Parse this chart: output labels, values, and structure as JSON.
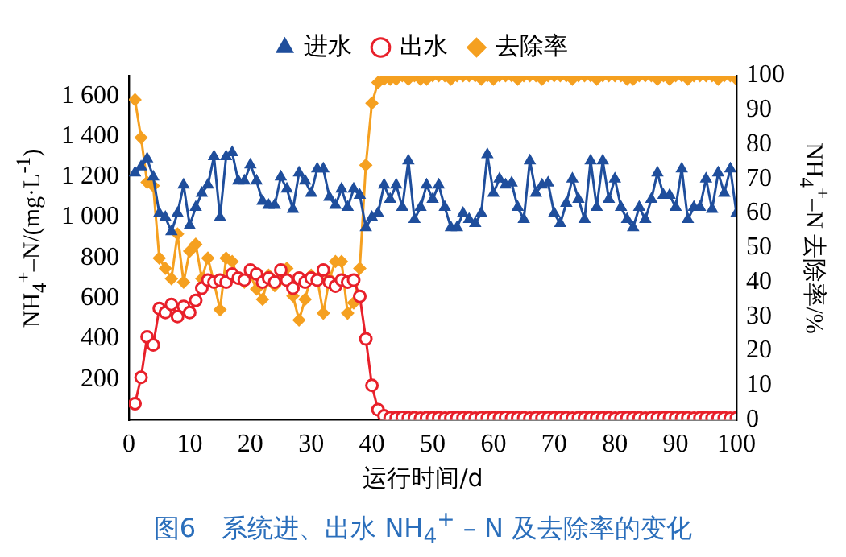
{
  "chart_data": {
    "type": "line",
    "xlabel": "运行时间/d",
    "ylabel": "NH$_{4}$$^{+}$–N/(mg·L$^{-1}$)",
    "y2label": "NH$_{4}$$^{+}$–N 去除率/%",
    "x": [
      1,
      2,
      3,
      4,
      5,
      6,
      7,
      8,
      9,
      10,
      11,
      12,
      13,
      14,
      15,
      16,
      17,
      18,
      19,
      20,
      21,
      22,
      23,
      24,
      25,
      26,
      27,
      28,
      29,
      30,
      31,
      32,
      33,
      34,
      35,
      36,
      37,
      38,
      39,
      40,
      41,
      42,
      43,
      44,
      45,
      46,
      47,
      48,
      49,
      50,
      51,
      52,
      53,
      54,
      55,
      56,
      57,
      58,
      59,
      60,
      61,
      62,
      63,
      64,
      65,
      66,
      67,
      68,
      69,
      70,
      71,
      72,
      73,
      74,
      75,
      76,
      77,
      78,
      79,
      80,
      81,
      82,
      83,
      84,
      85,
      86,
      87,
      88,
      89,
      90,
      91,
      92,
      93,
      94,
      95,
      96,
      97,
      98,
      99,
      100
    ],
    "series": [
      {
        "name": "进水",
        "color": "#1f4e9c",
        "marker": "triangle",
        "values": [
          1220,
          1250,
          1290,
          1200,
          1020,
          1000,
          930,
          1020,
          1160,
          960,
          1050,
          1120,
          1160,
          1300,
          1000,
          1300,
          1320,
          1180,
          1180,
          1260,
          1180,
          1080,
          1060,
          1060,
          1200,
          1140,
          1040,
          1220,
          1180,
          1120,
          1240,
          1240,
          1100,
          1060,
          1140,
          1050,
          1140,
          1110,
          950,
          1000,
          1020,
          1160,
          1090,
          1160,
          1050,
          1280,
          990,
          1050,
          1160,
          1090,
          1160,
          1050,
          950,
          950,
          1020,
          990,
          970,
          1020,
          1310,
          1120,
          1190,
          1160,
          1170,
          1050,
          990,
          1280,
          1120,
          1160,
          1170,
          1020,
          970,
          1070,
          1190,
          1090,
          990,
          1280,
          1050,
          1280,
          1090,
          1190,
          1050,
          990,
          950,
          1050,
          990,
          1090,
          1220,
          1110,
          1110,
          1050,
          1240,
          990,
          1050,
          1050,
          1190,
          1040,
          1220,
          1120,
          1240,
          1020
        ]
      },
      {
        "name": "出水",
        "color": "#e8202a",
        "marker": "circle",
        "values": [
          80,
          210,
          410,
          370,
          550,
          530,
          570,
          510,
          560,
          530,
          590,
          650,
          690,
          680,
          690,
          680,
          720,
          700,
          690,
          740,
          720,
          680,
          700,
          680,
          740,
          690,
          650,
          700,
          680,
          700,
          690,
          740,
          680,
          660,
          690,
          680,
          690,
          610,
          400,
          170,
          50,
          20,
          10,
          10,
          12,
          10,
          10,
          8,
          10,
          10,
          10,
          8,
          10,
          10,
          10,
          10,
          8,
          10,
          10,
          10,
          10,
          12,
          10,
          10,
          10,
          8,
          10,
          10,
          10,
          10,
          10,
          10,
          8,
          10,
          10,
          10,
          10,
          10,
          10,
          8,
          10,
          10,
          10,
          10,
          8,
          10,
          10,
          10,
          12,
          10,
          10,
          10,
          8,
          10,
          10,
          10,
          10,
          10,
          8,
          10
        ]
      },
      {
        "name": "去除率",
        "color": "#f5a020",
        "marker": "diamond",
        "axis": "y2",
        "values": [
          93,
          82,
          69,
          68,
          47,
          44,
          41,
          54,
          40,
          49,
          51,
          41,
          47,
          40,
          32,
          47,
          46,
          41,
          40,
          42,
          38,
          35,
          42,
          39,
          41,
          44,
          36,
          29,
          35,
          42,
          41,
          31,
          41,
          46,
          46,
          31,
          34,
          44,
          74,
          92,
          98,
          99,
          99,
          99,
          100,
          99,
          100,
          99,
          99,
          100,
          100,
          100,
          99,
          100,
          100,
          100,
          100,
          99,
          100,
          99,
          100,
          100,
          100,
          99,
          100,
          100,
          100,
          99,
          100,
          100,
          100,
          100,
          99,
          100,
          100,
          100,
          99,
          100,
          100,
          100,
          100,
          99,
          99,
          100,
          100,
          100,
          99,
          100,
          99,
          100,
          100,
          99,
          100,
          100,
          100,
          100,
          99,
          100,
          100,
          99
        ]
      }
    ],
    "xlim": [
      0,
      100
    ],
    "xticks": [
      0,
      10,
      20,
      30,
      40,
      50,
      60,
      70,
      80,
      90,
      100
    ],
    "ylim": [
      0,
      1700
    ],
    "yticks": [
      200,
      400,
      600,
      800,
      {
        "value": 1000,
        "label": "1 000"
      },
      {
        "value": 1200,
        "label": "1 200"
      },
      {
        "value": 1400,
        "label": "1 400"
      },
      {
        "value": 1600,
        "label": "1 600"
      }
    ],
    "y2lim": [
      0,
      100
    ],
    "y2ticks": [
      0,
      10,
      20,
      30,
      40,
      50,
      60,
      70,
      80,
      90,
      100
    ],
    "legend": "top",
    "grid": false,
    "annotations": [
      "图6　系统进、出水 NH$_{4}$$^{+}$ – N 及去除率的变化"
    ]
  }
}
